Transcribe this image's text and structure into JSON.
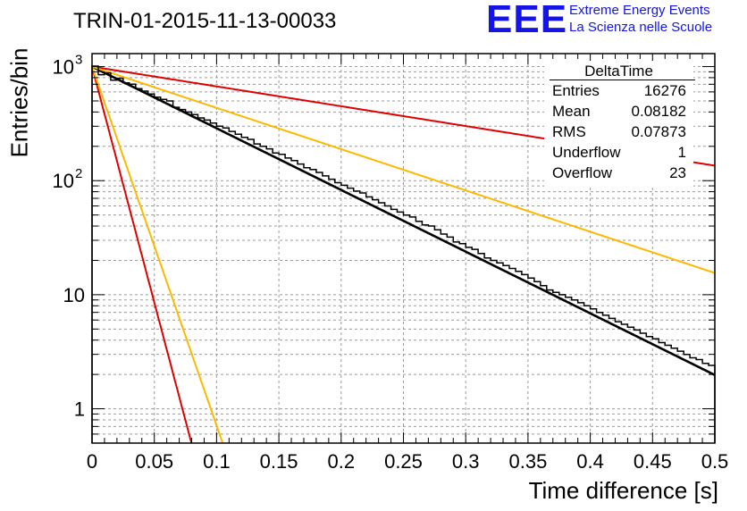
{
  "header": {
    "title": "TRIN-01-2015-11-13-00033",
    "logo_text": "EEE",
    "logo_line1": "Extreme Energy Events",
    "logo_line2": "La Scienza nelle Scuole",
    "logo_color": "#1414e6"
  },
  "stats_box": {
    "title": "DeltaTime",
    "rows": [
      {
        "label": "Entries",
        "value": "16276"
      },
      {
        "label": "Mean",
        "value": "0.08182"
      },
      {
        "label": "RMS",
        "value": "0.07873"
      },
      {
        "label": "Underflow",
        "value": "1"
      },
      {
        "label": "Overflow",
        "value": "23"
      }
    ]
  },
  "chart_data": {
    "type": "histogram",
    "xlabel": "Time difference [s]",
    "ylabel": "Entries/bin",
    "xlim": [
      0,
      0.5
    ],
    "ylim": [
      0.5,
      1300
    ],
    "yscale": "log",
    "grid": true,
    "x_ticks": [
      "0",
      "0.05",
      "0.1",
      "0.15",
      "0.2",
      "0.25",
      "0.3",
      "0.35",
      "0.4",
      "0.45",
      "0.5"
    ],
    "y_ticks": [
      {
        "value": 1,
        "label": "1"
      },
      {
        "value": 10,
        "label": "10"
      },
      {
        "value": 100,
        "label": "10",
        "exp": "2"
      },
      {
        "value": 1000,
        "label": "10",
        "exp": "3"
      }
    ],
    "histogram": {
      "bin_width": 0.005,
      "counts": [
        1010,
        850,
        880,
        760,
        790,
        720,
        700,
        640,
        610,
        575,
        540,
        515,
        500,
        440,
        420,
        400,
        380,
        355,
        340,
        320,
        300,
        290,
        270,
        255,
        240,
        230,
        210,
        200,
        190,
        175,
        170,
        158,
        150,
        140,
        130,
        125,
        118,
        110,
        103,
        96,
        91,
        86,
        81,
        78,
        72,
        68,
        64,
        60,
        56,
        53,
        50,
        48,
        44,
        41,
        40,
        37,
        34,
        32,
        29,
        28,
        26,
        25,
        23,
        21,
        20,
        19,
        18,
        17,
        16,
        15,
        14,
        13,
        12,
        11,
        10.5,
        10,
        9.5,
        9,
        8.5,
        8,
        7.5,
        7,
        6.6,
        6.2,
        5.8,
        5.5,
        5.2,
        4.9,
        4.6,
        4.3,
        4.1,
        3.8,
        3.6,
        3.4,
        3.2,
        3.0,
        2.8,
        2.7,
        2.5,
        2.4
      ]
    },
    "series": [
      {
        "label": "fit",
        "color": "#000000",
        "tau": 0.0803,
        "amplitude": 1000
      },
      {
        "label": "red-slow",
        "color": "#e00000",
        "tau": 0.25,
        "amplitude": 1000
      },
      {
        "label": "orange-slow",
        "color": "#ffb800",
        "tau": 0.12,
        "amplitude": 1000
      },
      {
        "label": "red-fast",
        "color": "#e00000",
        "tau": 0.0105,
        "amplitude": 1000
      },
      {
        "label": "orange-fast",
        "color": "#ffb800",
        "tau": 0.0138,
        "amplitude": 1000
      }
    ]
  }
}
